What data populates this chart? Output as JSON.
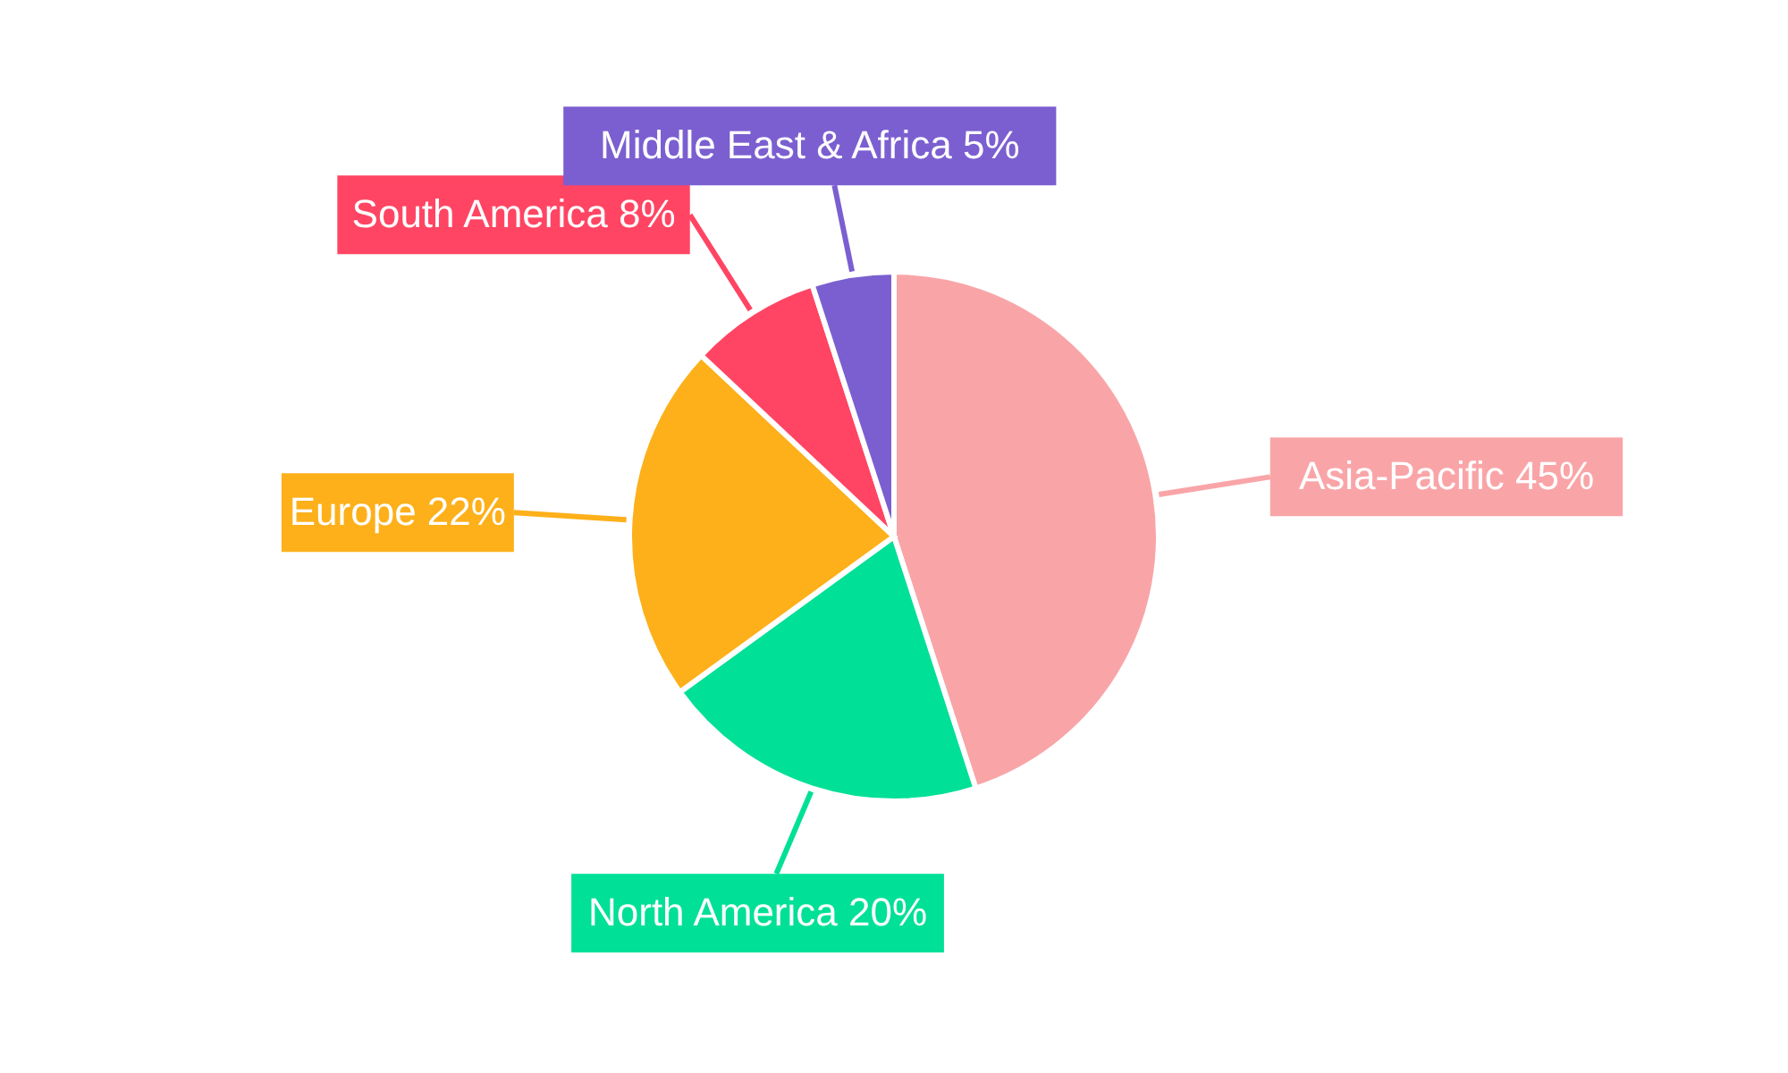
{
  "chart_data": {
    "type": "pie",
    "categories": [
      "Asia-Pacific",
      "North America",
      "Europe",
      "South America",
      "Middle East & Africa"
    ],
    "values": [
      45,
      20,
      22,
      8,
      5
    ],
    "colors": [
      "#f9a5a8",
      "#00e096",
      "#fdb01a",
      "#ff4563",
      "#7b5fd0"
    ],
    "value_labels": [
      "45%",
      "20%",
      "22%",
      "8%",
      "5%"
    ]
  }
}
